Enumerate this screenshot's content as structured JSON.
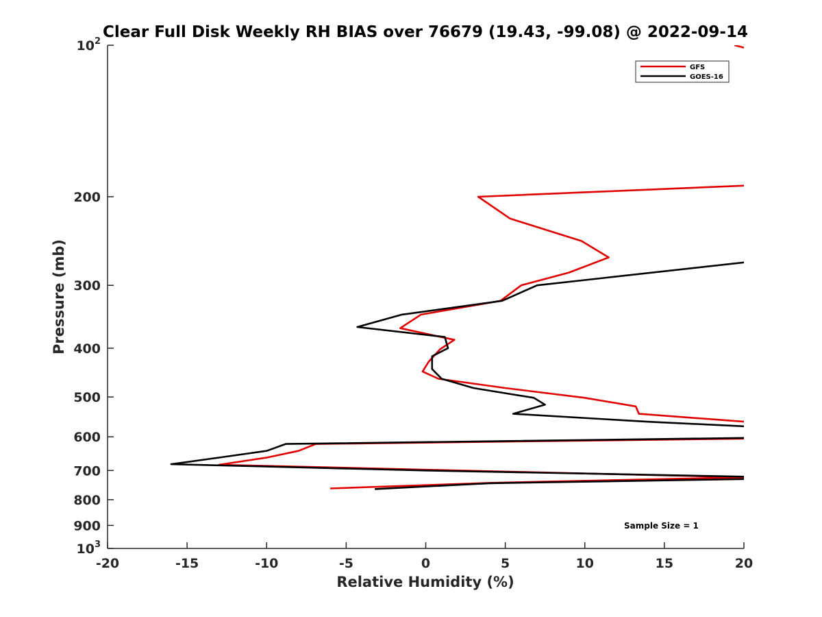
{
  "chart_data": {
    "type": "line",
    "title": "Clear Full Disk Weekly RH BIAS over 76679 (19.43, -99.08) @ 2022-09-14",
    "xlabel": "Relative Humidity (%)",
    "ylabel": "Pressure (mb)",
    "xlim": [
      -20,
      20
    ],
    "ylim": [
      100,
      1000
    ],
    "y_scale": "log",
    "y_reversed": true,
    "x_ticks": [
      -20,
      -15,
      -10,
      -5,
      0,
      5,
      10,
      15,
      20
    ],
    "x_tick_labels": [
      "-20",
      "-15",
      "-10",
      "-5",
      "0",
      "5",
      "10",
      "15",
      "20"
    ],
    "y_ticks": [
      200,
      300,
      400,
      500,
      600,
      700,
      800,
      900
    ],
    "y_tick_labels": [
      "200",
      "300",
      "400",
      "500",
      "600",
      "700",
      "800",
      "900"
    ],
    "y_decade_labels": [
      {
        "value": 100,
        "base": "10",
        "exp": "2"
      },
      {
        "value": 1000,
        "base": "10",
        "exp": "3"
      }
    ],
    "grid": false,
    "legend_position": "top-right",
    "series": [
      {
        "name": "GFS",
        "color": "#e00000",
        "points": [
          [
            19.4,
            100
          ],
          [
            20.5,
            102
          ],
          [
            20.2,
            190
          ],
          [
            3.3,
            200
          ],
          [
            5.3,
            221
          ],
          [
            9.8,
            245
          ],
          [
            11.5,
            264
          ],
          [
            9.0,
            283
          ],
          [
            6.0,
            300
          ],
          [
            4.7,
            322
          ],
          [
            -0.3,
            343
          ],
          [
            -1.6,
            365
          ],
          [
            1.8,
            385
          ],
          [
            0.9,
            402
          ],
          [
            0.2,
            425
          ],
          [
            -0.2,
            445
          ],
          [
            0.8,
            460
          ],
          [
            5.0,
            480
          ],
          [
            10.0,
            502
          ],
          [
            13.2,
            522
          ],
          [
            13.4,
            540
          ],
          [
            20.1,
            560
          ],
          [
            20.1,
            605
          ],
          [
            -6.9,
            620
          ],
          [
            -8.0,
            640
          ],
          [
            -10.0,
            660
          ],
          [
            -13.0,
            682
          ],
          [
            20.1,
            722
          ],
          [
            4.0,
            741
          ],
          [
            -6.0,
            760
          ]
        ]
      },
      {
        "name": "GOES-16",
        "color": "#000000",
        "points": [
          [
            20.1,
            270
          ],
          [
            7.0,
            300
          ],
          [
            4.8,
            322
          ],
          [
            -1.5,
            343
          ],
          [
            -4.3,
            363
          ],
          [
            1.2,
            380
          ],
          [
            1.4,
            400
          ],
          [
            0.4,
            415
          ],
          [
            0.4,
            440
          ],
          [
            1.0,
            460
          ],
          [
            3.0,
            480
          ],
          [
            6.8,
            502
          ],
          [
            7.5,
            518
          ],
          [
            5.5,
            540
          ],
          [
            14.0,
            560
          ],
          [
            20.1,
            572
          ],
          [
            20.1,
            603
          ],
          [
            -8.8,
            620
          ],
          [
            -10.0,
            640
          ],
          [
            -13.0,
            660
          ],
          [
            -16.0,
            680
          ],
          [
            0.0,
            700
          ],
          [
            20.1,
            720
          ],
          [
            20.1,
            728
          ],
          [
            4.0,
            742
          ],
          [
            -3.2,
            762
          ]
        ]
      }
    ],
    "annotation": "Sample Size = 1"
  }
}
